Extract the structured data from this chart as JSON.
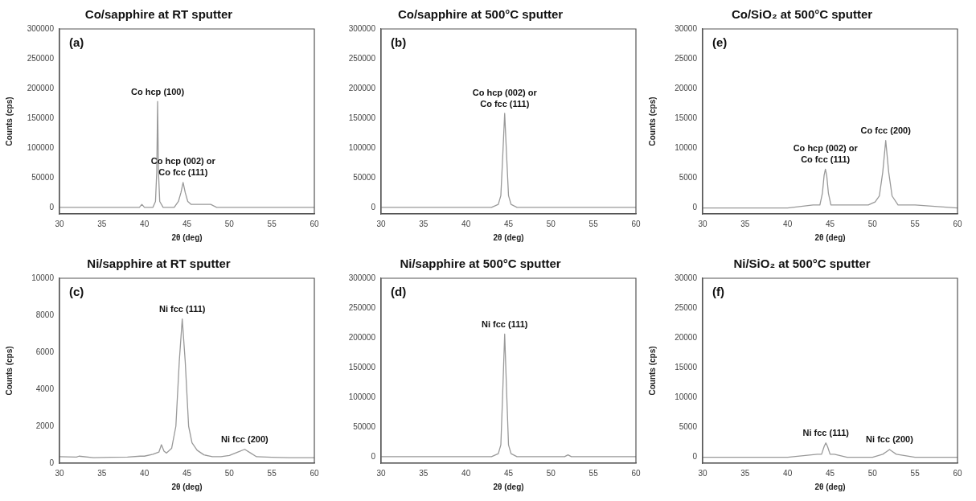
{
  "chart_data": [
    {
      "type": "line",
      "title": "Co/sapphire at RT sputter",
      "xlabel": "2θ (deg)",
      "ylabel": "Counts (cps)",
      "xlim": [
        30,
        60
      ],
      "xticks": [
        30,
        35,
        40,
        45,
        50,
        55,
        60
      ],
      "ylim": [
        -11000,
        300000
      ],
      "yticks": [
        0,
        50000,
        100000,
        150000,
        200000,
        250000,
        300000
      ],
      "series": [
        {
          "color": "#999999",
          "x": [
            30,
            35,
            39.4,
            39.7,
            40,
            41,
            41.3,
            41.45,
            41.55,
            41.65,
            41.8,
            42.2,
            43.5,
            44,
            44.3,
            44.55,
            44.8,
            45.1,
            45.5,
            46,
            46.7,
            47.3,
            47.8,
            48.5,
            50,
            55,
            60
          ],
          "values": [
            0,
            0,
            0,
            5000,
            0,
            0,
            10000,
            60000,
            178000,
            60000,
            10000,
            0,
            0,
            10000,
            25000,
            42000,
            25000,
            10000,
            5000,
            5000,
            5000,
            5000,
            5000,
            0,
            0,
            0,
            0
          ]
        }
      ],
      "annotations": [
        "(a)",
        {
          "text": "Co hcp (100)",
          "x": 41.55,
          "y": 178000
        },
        {
          "text": "Co hcp (002) or\nCo fcc (111)",
          "x": 44.55,
          "y": 42000
        }
      ]
    },
    {
      "type": "line",
      "title": "Co/sapphire at 500°C sputter",
      "xlabel": "2θ (deg)",
      "xlim": [
        30,
        60
      ],
      "xticks": [
        30,
        35,
        40,
        45,
        50,
        55,
        60
      ],
      "ylim": [
        -11000,
        300000
      ],
      "yticks": [
        0,
        50000,
        100000,
        150000,
        200000,
        250000,
        300000
      ],
      "series": [
        {
          "color": "#999999",
          "x": [
            30,
            35,
            40,
            43,
            43.8,
            44.1,
            44.3,
            44.55,
            44.8,
            45,
            45.3,
            46,
            50,
            55,
            60
          ],
          "values": [
            0,
            0,
            0,
            0,
            5000,
            20000,
            80000,
            158000,
            80000,
            20000,
            5000,
            0,
            0,
            0,
            0
          ]
        }
      ],
      "annotations": [
        "(b)",
        {
          "text": "Co hcp (002) or\nCo fcc (111)",
          "x": 44.55,
          "y": 158000
        }
      ]
    },
    {
      "type": "line",
      "title": "Co/SiO₂ at 500°C sputter",
      "xlabel": "2θ (deg)",
      "ylabel": "Counts (cps)",
      "xlim": [
        30,
        60
      ],
      "xticks": [
        30,
        35,
        40,
        45,
        50,
        55,
        60
      ],
      "ylim": [
        -1000,
        30000
      ],
      "yticks": [
        0,
        5000,
        10000,
        15000,
        20000,
        25000,
        30000
      ],
      "series": [
        {
          "color": "#999999",
          "x": [
            30,
            35,
            40,
            43,
            43.8,
            44.1,
            44.3,
            44.45,
            44.6,
            44.8,
            45.1,
            46,
            48,
            49.5,
            50.3,
            50.8,
            51.2,
            51.55,
            51.9,
            52.3,
            53,
            55,
            60
          ],
          "values": [
            0,
            0,
            0,
            500,
            500,
            2500,
            5500,
            6500,
            5500,
            2500,
            500,
            500,
            500,
            500,
            1000,
            2000,
            6000,
            11300,
            6000,
            2000,
            500,
            500,
            0
          ]
        }
      ],
      "annotations": [
        "(e)",
        {
          "text": "Co hcp (002) or\nCo fcc (111)",
          "x": 44.45,
          "y": 6500
        },
        {
          "text": "Co fcc (200)",
          "x": 51.55,
          "y": 11300
        }
      ]
    },
    {
      "type": "line",
      "title": "Ni/sapphire at RT sputter",
      "xlabel": "2θ (deg)",
      "ylabel": "Counts (cps)",
      "xlim": [
        30,
        60
      ],
      "xticks": [
        30,
        35,
        40,
        45,
        50,
        55,
        60
      ],
      "ylim": [
        0,
        10000
      ],
      "yticks": [
        0,
        2000,
        4000,
        6000,
        8000,
        10000
      ],
      "series": [
        {
          "color": "#999999",
          "x": [
            30,
            32,
            32.3,
            34,
            36,
            38,
            39.5,
            40,
            41,
            41.7,
            42,
            42.3,
            42.6,
            43.2,
            43.7,
            44.1,
            44.45,
            44.8,
            45.2,
            45.6,
            46.2,
            47,
            48,
            49,
            50,
            51,
            51.8,
            52.5,
            53.2,
            55,
            57,
            60
          ],
          "values": [
            350,
            330,
            380,
            300,
            320,
            330,
            380,
            380,
            480,
            600,
            1000,
            650,
            550,
            800,
            2000,
            5500,
            7800,
            5500,
            2000,
            1100,
            700,
            450,
            350,
            350,
            420,
            600,
            750,
            550,
            350,
            320,
            300,
            300
          ]
        }
      ],
      "annotations": [
        "(c)",
        {
          "text": "Ni fcc (111)",
          "x": 44.45,
          "y": 7800
        },
        {
          "text": "Ni fcc (200)",
          "x": 51.8,
          "y": 750
        }
      ]
    },
    {
      "type": "line",
      "title": "Ni/sapphire at 500°C sputter",
      "xlabel": "2θ (deg)",
      "xlim": [
        30,
        60
      ],
      "xticks": [
        30,
        35,
        40,
        45,
        50,
        55,
        60
      ],
      "ylim": [
        -11000,
        300000
      ],
      "yticks": [
        0,
        50000,
        100000,
        150000,
        200000,
        250000,
        300000
      ],
      "series": [
        {
          "color": "#999999",
          "x": [
            30,
            35,
            40,
            43,
            43.8,
            44.1,
            44.3,
            44.55,
            44.8,
            45,
            45.3,
            46,
            50,
            51.6,
            52,
            52.4,
            55,
            60
          ],
          "values": [
            0,
            0,
            0,
            0,
            5000,
            20000,
            100000,
            206000,
            100000,
            20000,
            5000,
            0,
            0,
            0,
            3000,
            0,
            0,
            0
          ]
        }
      ],
      "annotations": [
        "(d)",
        {
          "text": "Ni fcc (111)",
          "x": 44.55,
          "y": 206000
        }
      ]
    },
    {
      "type": "line",
      "title": "Ni/SiO₂ at 500°C sputter",
      "xlabel": "2θ (deg)",
      "ylabel": "Counts (cps)",
      "xlim": [
        30,
        60
      ],
      "xticks": [
        30,
        35,
        40,
        45,
        50,
        55,
        60
      ],
      "ylim": [
        -1000,
        30000
      ],
      "yticks": [
        0,
        5000,
        10000,
        15000,
        20000,
        25000,
        30000
      ],
      "series": [
        {
          "color": "#999999",
          "x": [
            30,
            35,
            40,
            43.5,
            44,
            44.3,
            44.5,
            44.7,
            45,
            45.5,
            47,
            50,
            51.2,
            51.7,
            52,
            52.3,
            52.8,
            55,
            60
          ],
          "values": [
            0,
            0,
            0,
            500,
            500,
            1800,
            2400,
            1800,
            500,
            500,
            0,
            0,
            500,
            1000,
            1300,
            1000,
            500,
            0,
            0
          ]
        }
      ],
      "annotations": [
        "(f)",
        {
          "text": "Ni fcc (111)",
          "x": 44.5,
          "y": 2400
        },
        {
          "text": "Ni fcc (200)",
          "x": 52,
          "y": 1300
        }
      ]
    }
  ]
}
